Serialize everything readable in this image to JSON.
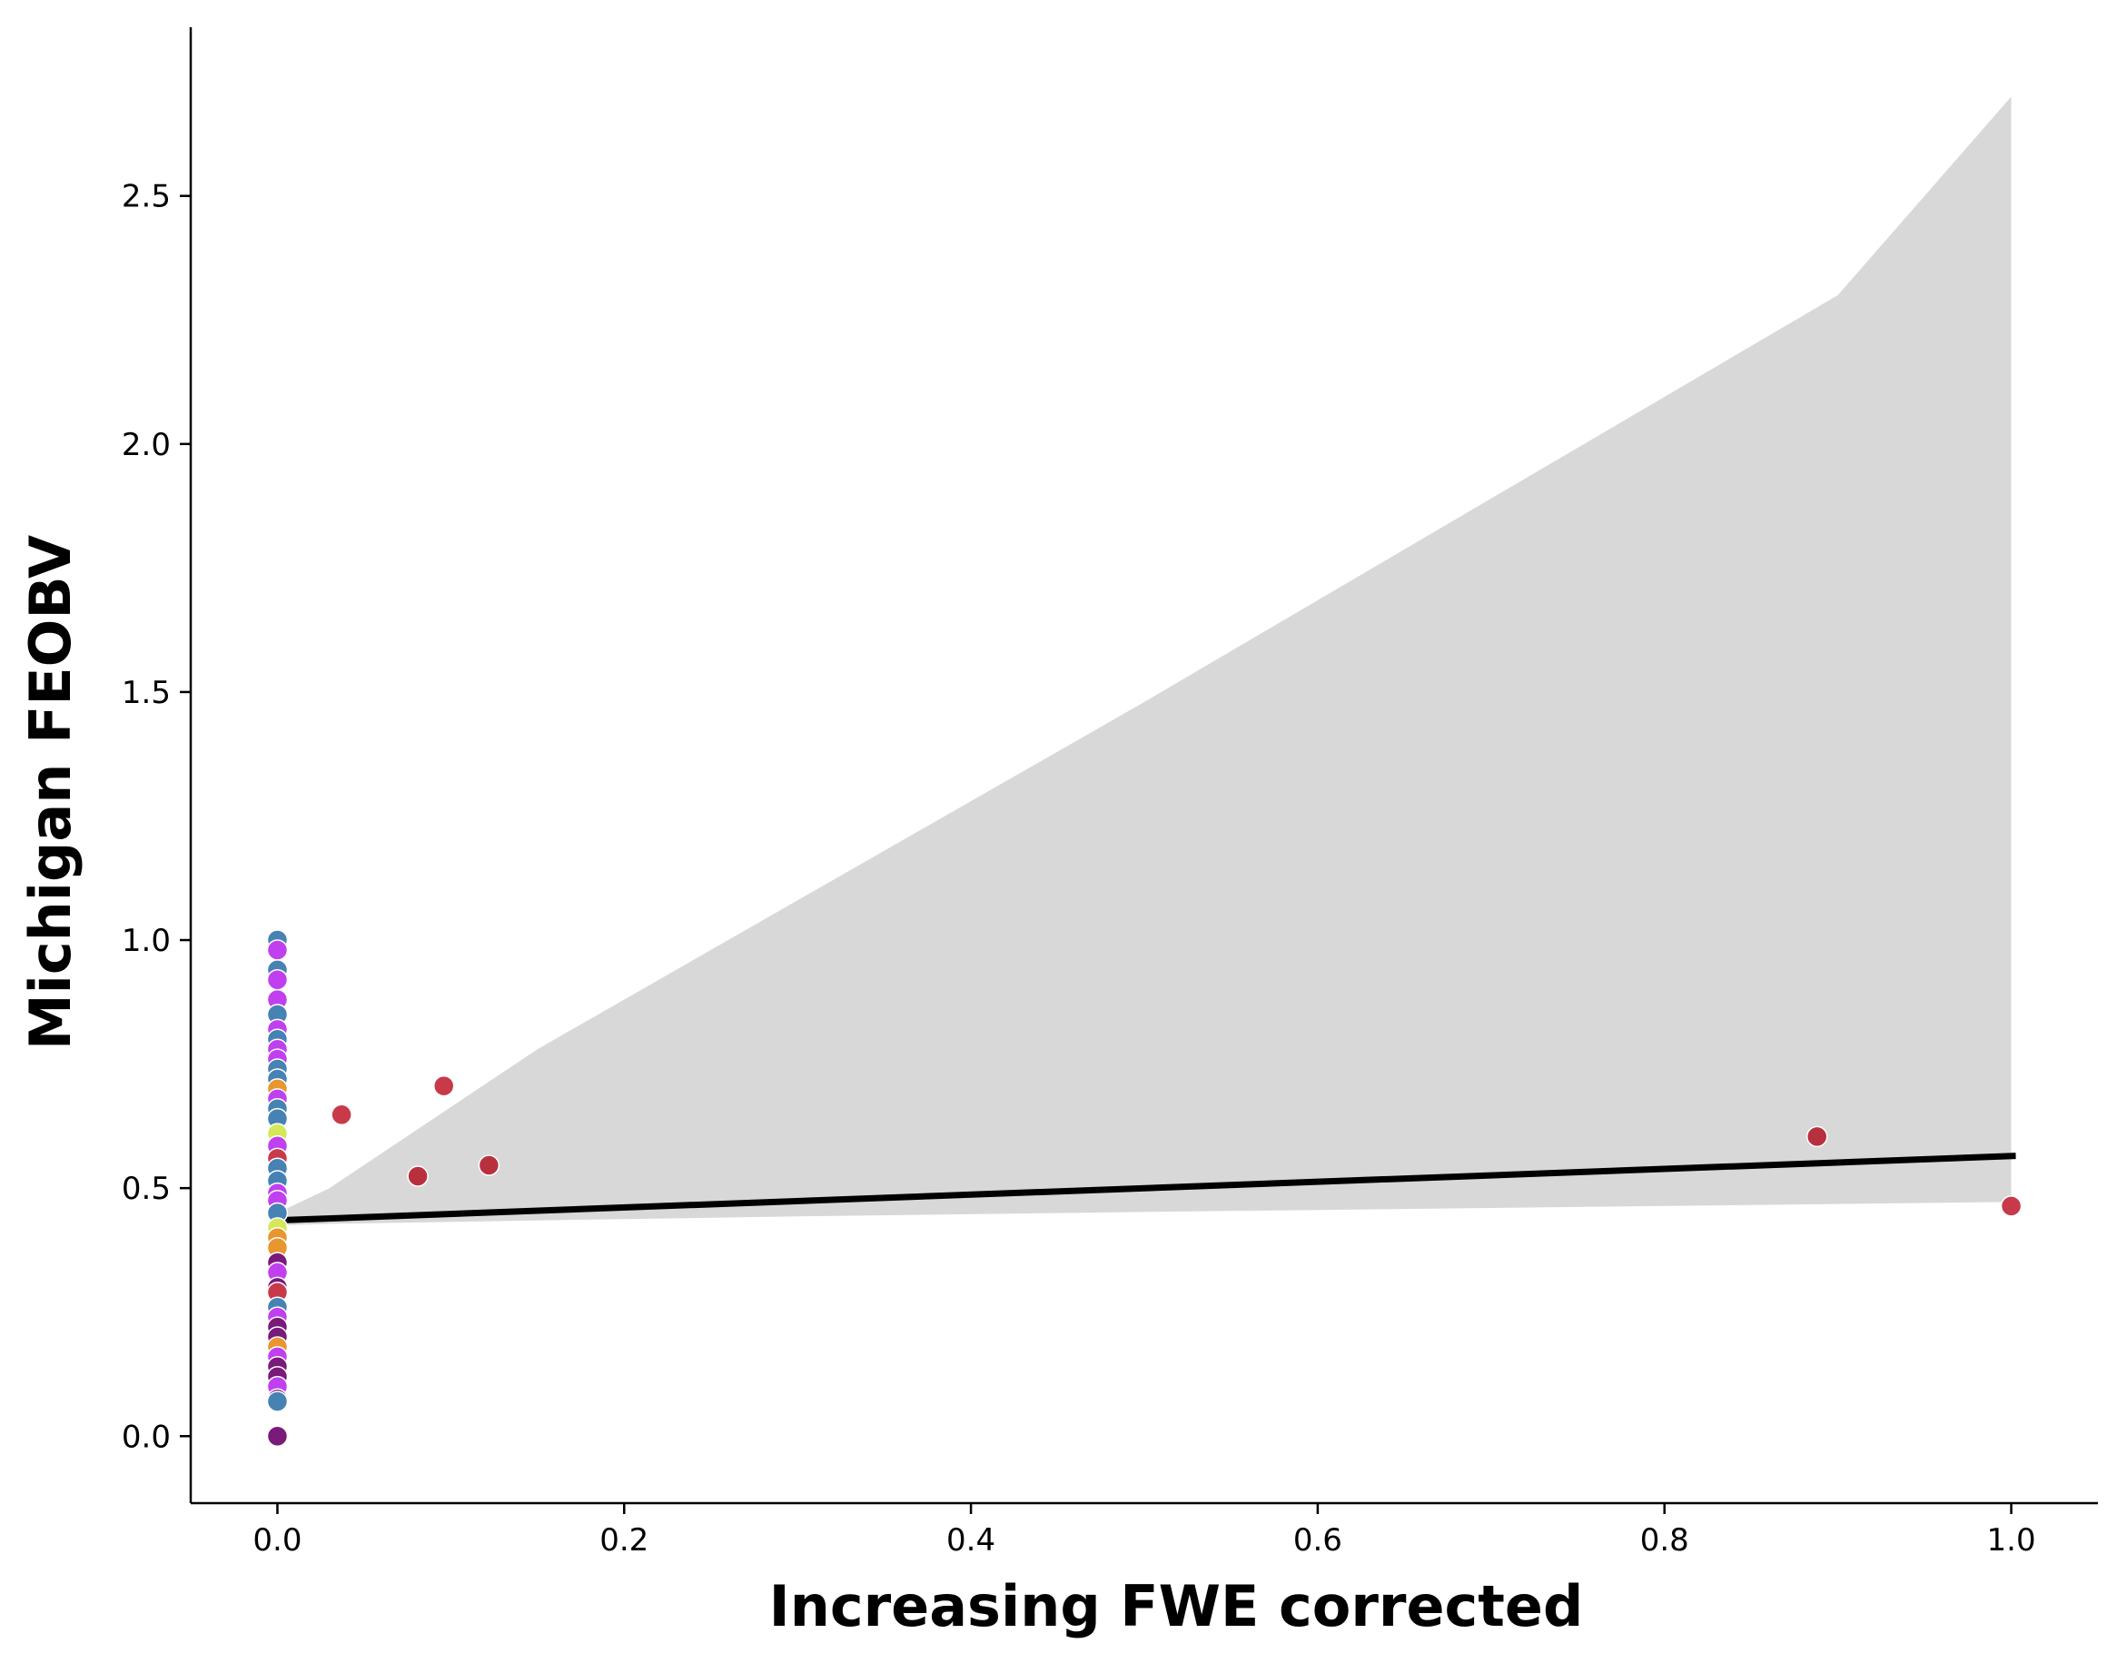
{
  "chart_data": {
    "type": "scatter",
    "title": "",
    "xlabel": "Increasing FWE corrected",
    "ylabel": "Michigan FEOBV",
    "xlim": [
      -0.05,
      1.05
    ],
    "ylim": [
      -0.135,
      2.84
    ],
    "xticks": [
      0.0,
      0.2,
      0.4,
      0.6,
      0.8,
      1.0
    ],
    "yticks": [
      0.0,
      0.5,
      1.0,
      1.5,
      2.0,
      2.5
    ],
    "xtick_labels": [
      "0.0",
      "0.2",
      "0.4",
      "0.6",
      "0.8",
      "1.0"
    ],
    "ytick_labels": [
      "0.0",
      "0.5",
      "1.0",
      "1.5",
      "2.0",
      "2.5"
    ],
    "grid": false,
    "points": [
      {
        "x": 0,
        "y": 1.0,
        "color": "#4682b4"
      },
      {
        "x": 0,
        "y": 0.98,
        "color": "#c040f0"
      },
      {
        "x": 0,
        "y": 0.94,
        "color": "#4682b4"
      },
      {
        "x": 0,
        "y": 0.92,
        "color": "#c040f0"
      },
      {
        "x": 0,
        "y": 0.88,
        "color": "#c040f0"
      },
      {
        "x": 0,
        "y": 0.85,
        "color": "#4682b4"
      },
      {
        "x": 0,
        "y": 0.82,
        "color": "#c040f0"
      },
      {
        "x": 0,
        "y": 0.8,
        "color": "#4682b4"
      },
      {
        "x": 0,
        "y": 0.78,
        "color": "#c040f0"
      },
      {
        "x": 0,
        "y": 0.76,
        "color": "#c040f0"
      },
      {
        "x": 0,
        "y": 0.74,
        "color": "#4682b4"
      },
      {
        "x": 0,
        "y": 0.72,
        "color": "#4682b4"
      },
      {
        "x": 0,
        "y": 0.7,
        "color": "#e8962e"
      },
      {
        "x": 0,
        "y": 0.68,
        "color": "#c040f0"
      },
      {
        "x": 0,
        "y": 0.66,
        "color": "#4682b4"
      },
      {
        "x": 0,
        "y": 0.64,
        "color": "#4682b4"
      },
      {
        "x": 0,
        "y": 0.61,
        "color": "#d4e85a"
      },
      {
        "x": 0,
        "y": 0.585,
        "color": "#c040f0"
      },
      {
        "x": 0,
        "y": 0.56,
        "color": "#c8394a"
      },
      {
        "x": 0,
        "y": 0.54,
        "color": "#4682b4"
      },
      {
        "x": 0,
        "y": 0.515,
        "color": "#4682b4"
      },
      {
        "x": 0,
        "y": 0.49,
        "color": "#c040f0"
      },
      {
        "x": 0,
        "y": 0.475,
        "color": "#c040f0"
      },
      {
        "x": 0,
        "y": 0.45,
        "color": "#4682b4"
      },
      {
        "x": 0,
        "y": 0.42,
        "color": "#d4e85a"
      },
      {
        "x": 0,
        "y": 0.4,
        "color": "#e8962e"
      },
      {
        "x": 0,
        "y": 0.38,
        "color": "#e8962e"
      },
      {
        "x": 0,
        "y": 0.35,
        "color": "#7a1a7a"
      },
      {
        "x": 0,
        "y": 0.33,
        "color": "#c040f0"
      },
      {
        "x": 0,
        "y": 0.3,
        "color": "#7a1a7a"
      },
      {
        "x": 0,
        "y": 0.29,
        "color": "#c8394a"
      },
      {
        "x": 0,
        "y": 0.26,
        "color": "#4682b4"
      },
      {
        "x": 0,
        "y": 0.24,
        "color": "#c040f0"
      },
      {
        "x": 0,
        "y": 0.22,
        "color": "#7a1a7a"
      },
      {
        "x": 0,
        "y": 0.2,
        "color": "#7a1a7a"
      },
      {
        "x": 0,
        "y": 0.18,
        "color": "#e8962e"
      },
      {
        "x": 0,
        "y": 0.16,
        "color": "#c040f0"
      },
      {
        "x": 0,
        "y": 0.14,
        "color": "#7a1a7a"
      },
      {
        "x": 0,
        "y": 0.12,
        "color": "#7a1a7a"
      },
      {
        "x": 0,
        "y": 0.1,
        "color": "#c040f0"
      },
      {
        "x": 0,
        "y": 0.075,
        "color": "#7a1a7a"
      },
      {
        "x": 0,
        "y": 0.07,
        "color": "#4682b4"
      },
      {
        "x": 0,
        "y": 0.0,
        "color": "#7a1a7a"
      },
      {
        "x": 0.037,
        "y": 0.648,
        "color": "#c8394a"
      },
      {
        "x": 0.081,
        "y": 0.524,
        "color": "#b8303e"
      },
      {
        "x": 0.096,
        "y": 0.706,
        "color": "#c8394a"
      },
      {
        "x": 0.122,
        "y": 0.546,
        "color": "#b8303e"
      },
      {
        "x": 0.888,
        "y": 0.604,
        "color": "#b8303e"
      },
      {
        "x": 1.0,
        "y": 0.464,
        "color": "#c8394a"
      }
    ],
    "regression": {
      "x": [
        0.0,
        1.0
      ],
      "y": [
        0.435,
        0.565
      ],
      "color": "#000000"
    },
    "confidence_band": {
      "x": [
        0.0,
        0.03,
        0.15,
        0.3,
        0.5,
        0.7,
        0.9,
        1.0
      ],
      "upper": [
        0.45,
        0.5,
        0.78,
        1.08,
        1.48,
        1.89,
        2.3,
        2.7
      ],
      "lower": [
        0.425,
        0.428,
        0.435,
        0.443,
        0.452,
        0.46,
        0.468,
        0.472
      ],
      "color": "#d8d8d8"
    }
  }
}
